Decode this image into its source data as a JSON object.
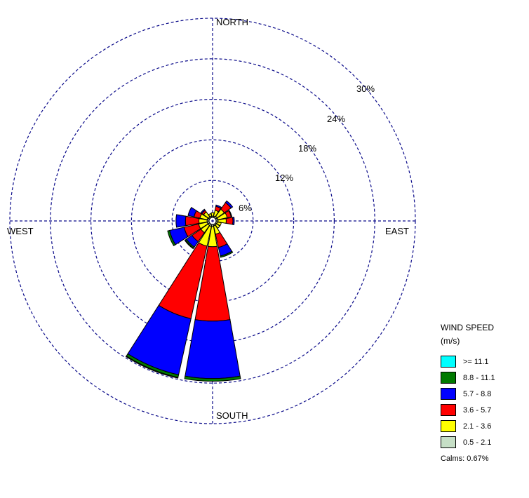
{
  "chart_data": {
    "type": "wind-rose",
    "direction_labels": {
      "north": "NORTH",
      "east": "EAST",
      "south": "SOUTH",
      "west": "WEST"
    },
    "ring_labels": [
      "6%",
      "12%",
      "18%",
      "24%",
      "30%"
    ],
    "ring_values": [
      6,
      12,
      18,
      24,
      30
    ],
    "max_percent": 30,
    "legend_title_line1": "WIND SPEED",
    "legend_title_line2": "(m/s)",
    "speed_classes": [
      {
        "label": "0.5 - 2.1",
        "color": "#c6dfc6"
      },
      {
        "label": "2.1 - 3.6",
        "color": "#ffff00"
      },
      {
        "label": "3.6 - 5.7",
        "color": "#ff0000"
      },
      {
        "label": "5.7 - 8.8",
        "color": "#0000ff"
      },
      {
        "label": "8.8 - 11.1",
        "color": "#007a00"
      },
      {
        "label": ">= 11.1",
        "color": "#00ffff"
      }
    ],
    "calms": "Calms: 0.67%",
    "sector_width_deg": 22.5,
    "directions_deg": [
      0,
      22.5,
      45,
      67.5,
      90,
      112.5,
      135,
      157.5,
      180,
      202.5,
      225,
      247.5,
      270,
      292.5,
      315,
      337.5
    ],
    "frequencies": [
      [
        0.2,
        0.5,
        0.0,
        0.0,
        0.0,
        0.0
      ],
      [
        0.2,
        0.9,
        0.6,
        0.2,
        0.0,
        0.0
      ],
      [
        0.3,
        1.3,
        1.2,
        0.3,
        0.0,
        0.0
      ],
      [
        0.3,
        1.4,
        0.6,
        0.1,
        0.0,
        0.0
      ],
      [
        0.3,
        1.2,
        1.0,
        0.2,
        0.0,
        0.0
      ],
      [
        0.2,
        0.6,
        0.0,
        0.0,
        0.0,
        0.0
      ],
      [
        0.2,
        0.6,
        0.0,
        0.0,
        0.0,
        0.0
      ],
      [
        0.2,
        1.3,
        2.0,
        1.3,
        0.2,
        0.0
      ],
      [
        0.3,
        3.0,
        11.0,
        8.5,
        0.4,
        0.0
      ],
      [
        0.3,
        3.0,
        11.0,
        8.5,
        0.4,
        0.1
      ],
      [
        0.3,
        1.3,
        1.6,
        1.0,
        0.2,
        0.1
      ],
      [
        0.3,
        1.3,
        2.2,
        2.2,
        0.3,
        0.0
      ],
      [
        0.3,
        1.2,
        2.0,
        1.4,
        0.0,
        0.0
      ],
      [
        0.3,
        1.1,
        0.9,
        0.9,
        0.0,
        0.0
      ],
      [
        0.2,
        0.9,
        0.3,
        0.2,
        0.0,
        0.0
      ],
      [
        0.2,
        0.4,
        0.0,
        0.0,
        0.0,
        0.0
      ]
    ]
  }
}
